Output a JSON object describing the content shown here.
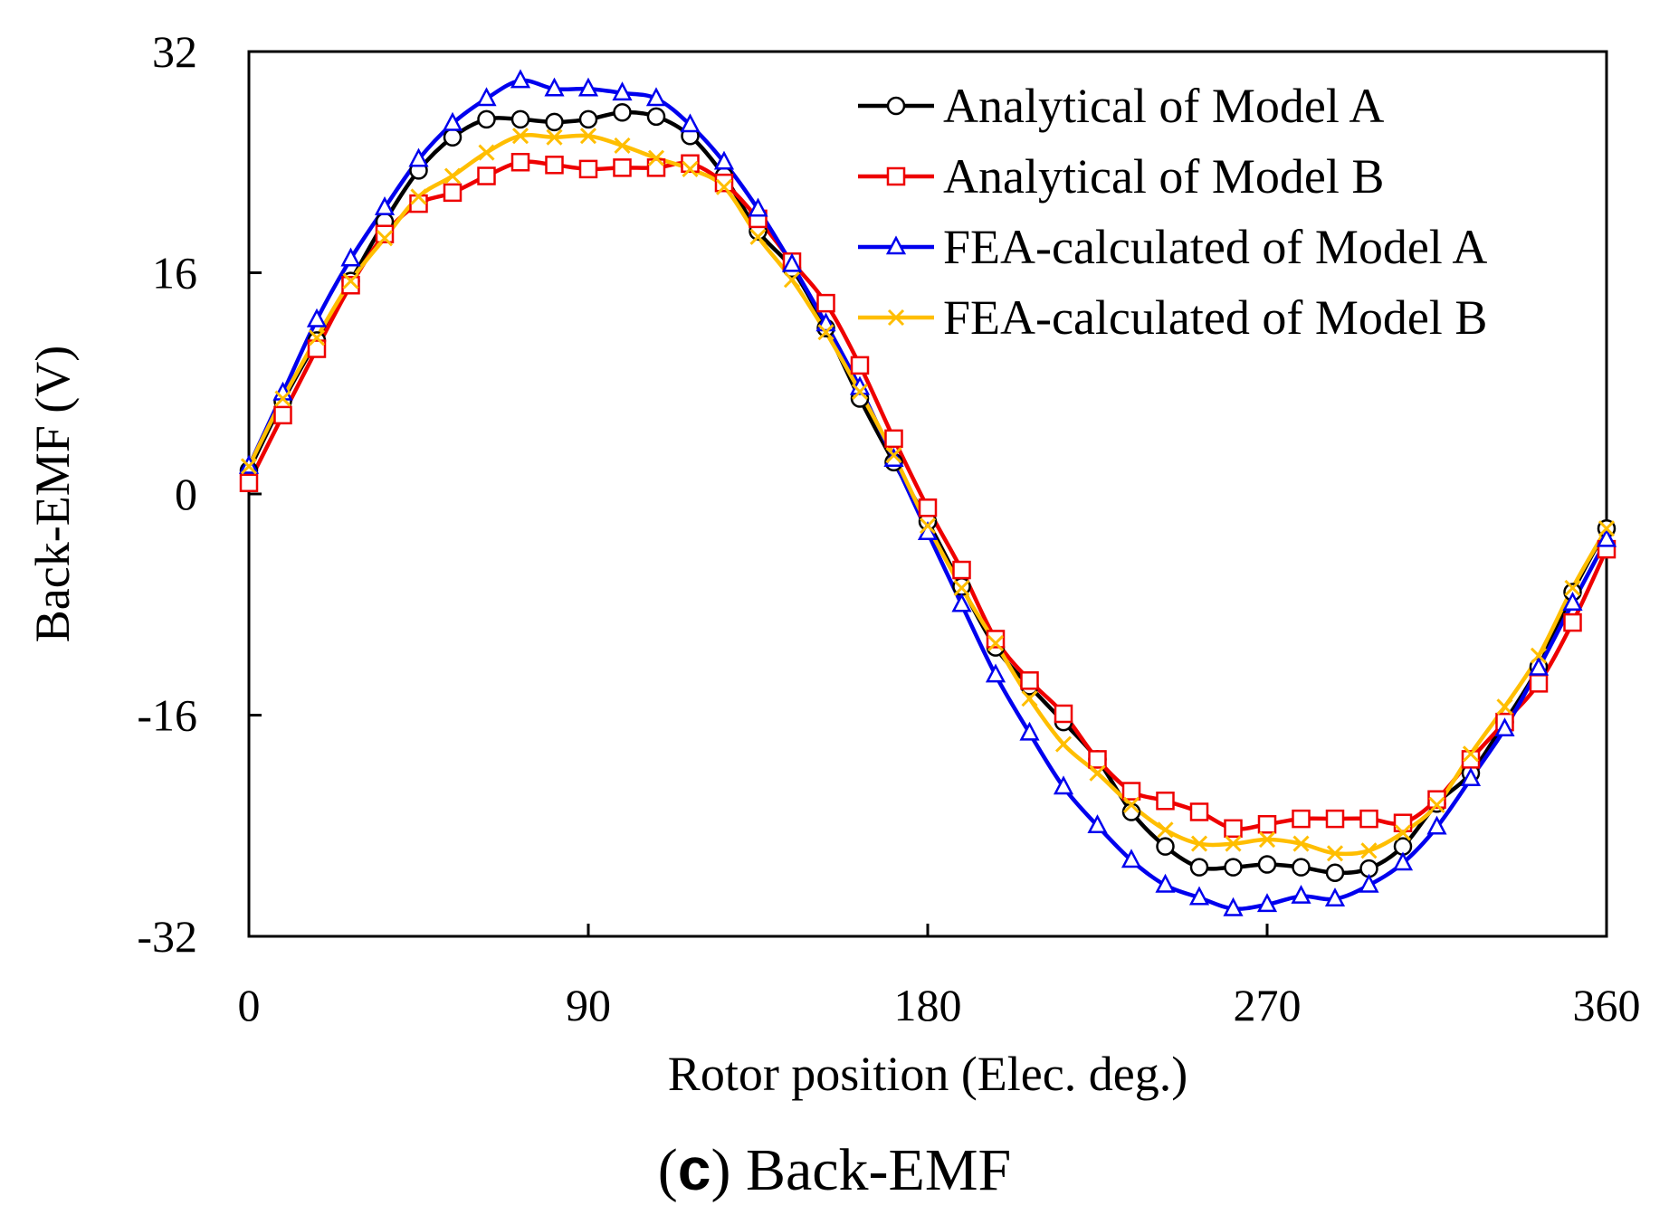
{
  "chart_data": {
    "type": "line",
    "caption_letter": "c",
    "caption_text": "Back-EMF",
    "xlabel": "Rotor position (Elec. deg.)",
    "ylabel": "Back-EMF (V)",
    "xlim": [
      0,
      360
    ],
    "ylim": [
      -32,
      32
    ],
    "xticks": [
      0,
      90,
      180,
      270,
      360
    ],
    "yticks": [
      32,
      16,
      0,
      -16,
      -32
    ],
    "grid": false,
    "legend_position": "top-right",
    "x": [
      0,
      9,
      18,
      27,
      36,
      45,
      54,
      63,
      72,
      81,
      90,
      99,
      108,
      117,
      126,
      135,
      144,
      153,
      162,
      171,
      180,
      189,
      198,
      207,
      216,
      225,
      234,
      243,
      252,
      261,
      270,
      279,
      288,
      297,
      306,
      315,
      324,
      333,
      342,
      351,
      360
    ],
    "series": [
      {
        "name": "Analytical of Model A",
        "color": "#000000",
        "marker": "circle",
        "values": [
          1.7,
          6.7,
          11.1,
          15.4,
          19.7,
          23.4,
          25.8,
          27.1,
          27.1,
          26.9,
          27.1,
          27.6,
          27.3,
          25.9,
          23.0,
          19.0,
          16.3,
          12.0,
          6.9,
          2.3,
          -2.0,
          -6.7,
          -11.1,
          -13.9,
          -16.5,
          -19.2,
          -23.0,
          -25.5,
          -27.0,
          -27.0,
          -26.8,
          -27.0,
          -27.4,
          -27.1,
          -25.5,
          -22.4,
          -20.2,
          -16.5,
          -12.5,
          -7.1,
          -2.5
        ]
      },
      {
        "name": "Analytical of Model B",
        "color": "#ee0000",
        "marker": "square",
        "values": [
          0.8,
          5.7,
          10.5,
          15.1,
          18.8,
          21.0,
          21.8,
          23.0,
          24.0,
          23.8,
          23.5,
          23.6,
          23.6,
          23.9,
          22.5,
          19.9,
          16.8,
          13.8,
          9.3,
          4.0,
          -1.0,
          -5.5,
          -10.5,
          -13.5,
          -15.9,
          -19.2,
          -21.5,
          -22.2,
          -23.0,
          -24.2,
          -23.9,
          -23.5,
          -23.5,
          -23.5,
          -23.8,
          -22.1,
          -19.2,
          -16.5,
          -13.7,
          -9.3,
          -4.0
        ]
      },
      {
        "name": "FEA-calculated of Model A",
        "color": "#0000ee",
        "marker": "triangle",
        "values": [
          2.0,
          7.3,
          12.6,
          17.0,
          20.7,
          24.2,
          26.8,
          28.6,
          29.9,
          29.3,
          29.3,
          29.0,
          28.6,
          26.7,
          24.0,
          20.6,
          16.6,
          12.3,
          7.7,
          2.5,
          -2.8,
          -8.0,
          -13.1,
          -17.3,
          -21.2,
          -24.0,
          -26.5,
          -28.3,
          -29.2,
          -30.0,
          -29.7,
          -29.1,
          -29.3,
          -28.3,
          -26.7,
          -24.1,
          -20.6,
          -17.0,
          -12.6,
          -7.9,
          -3.3
        ]
      },
      {
        "name": "FEA-calculated of Model B",
        "color": "#ffbe00",
        "marker": "x",
        "values": [
          2.0,
          6.9,
          11.3,
          15.4,
          18.5,
          21.5,
          23.0,
          24.7,
          25.9,
          25.8,
          25.9,
          25.2,
          24.3,
          23.5,
          22.2,
          18.6,
          15.5,
          11.7,
          7.4,
          2.8,
          -2.3,
          -6.8,
          -10.8,
          -14.8,
          -18.1,
          -20.2,
          -22.5,
          -24.3,
          -25.3,
          -25.3,
          -25.0,
          -25.3,
          -26.0,
          -25.8,
          -24.5,
          -22.5,
          -18.8,
          -15.4,
          -11.7,
          -6.8,
          -2.5
        ]
      }
    ]
  }
}
